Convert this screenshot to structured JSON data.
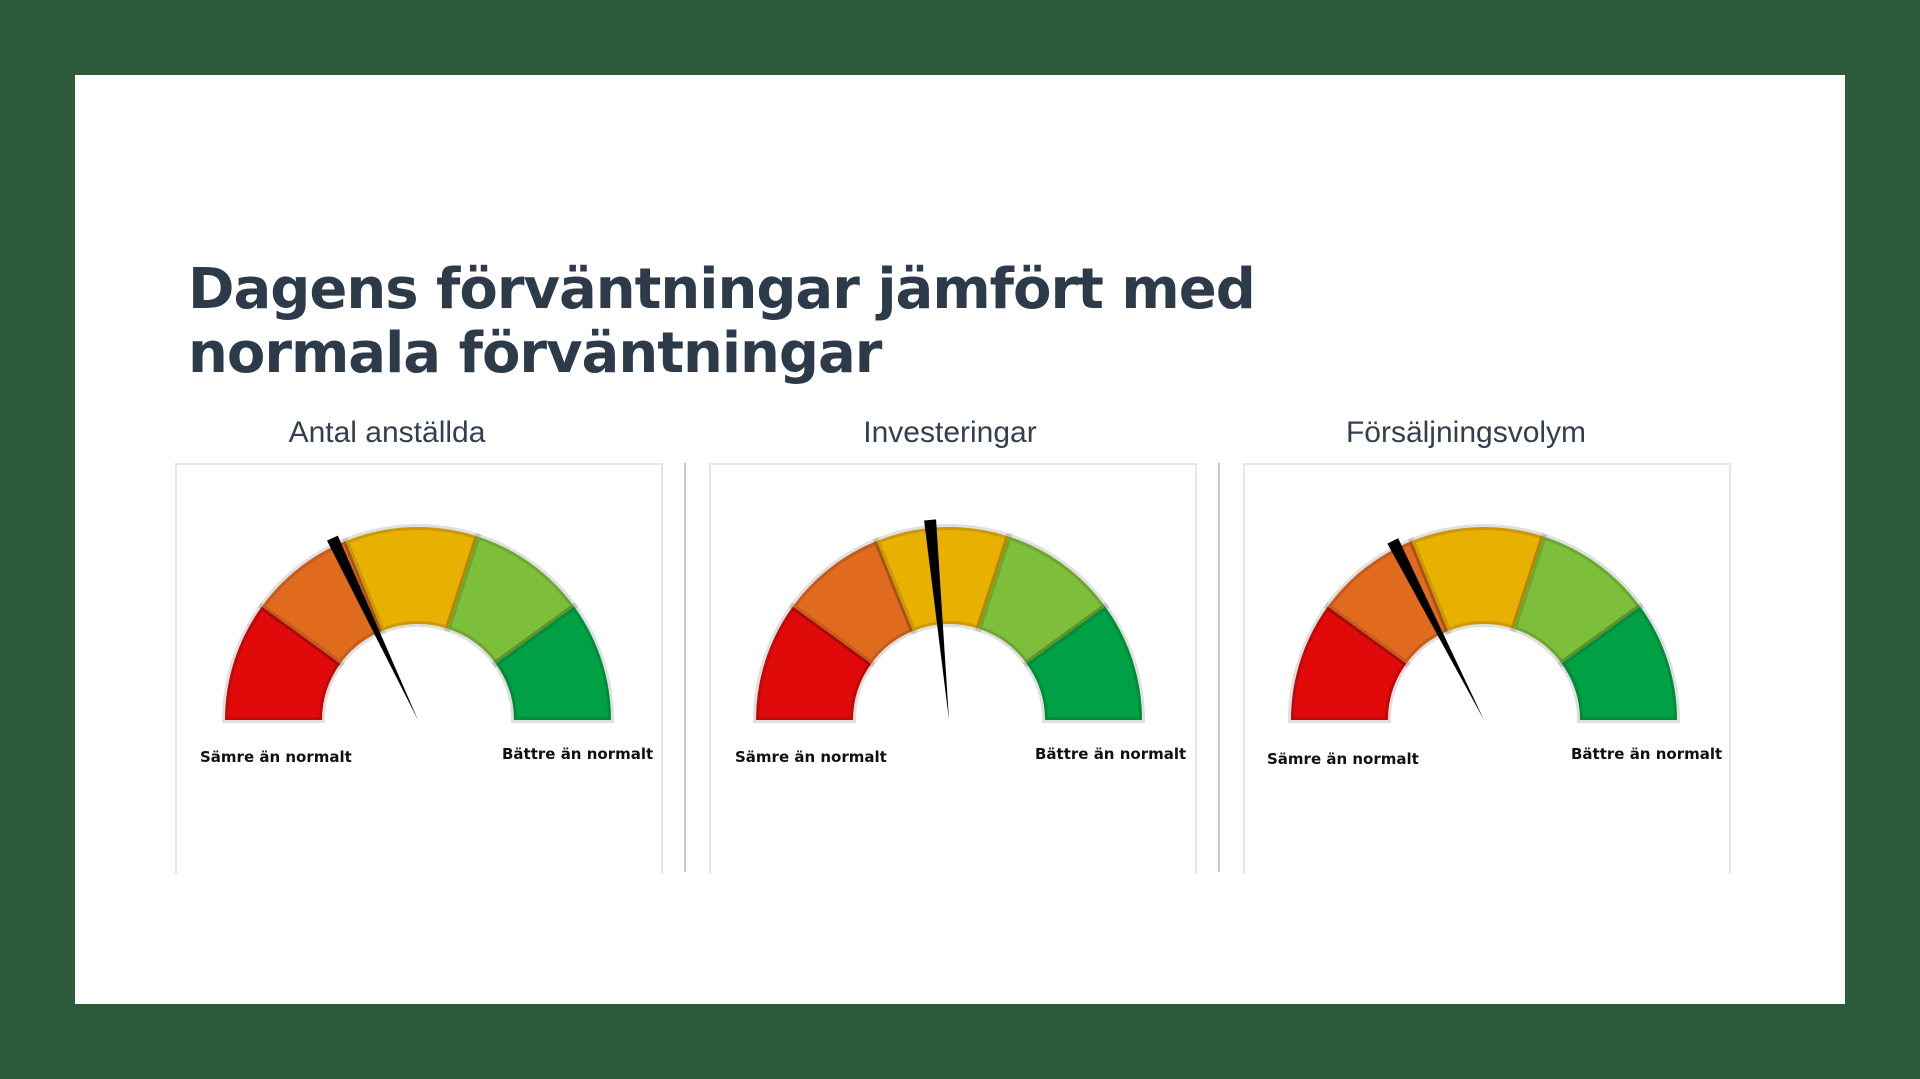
{
  "title": "Dagens förväntningar jämfört med normala förväntningar",
  "chart_data": [
    {
      "type": "gauge",
      "title": "Antal anställda",
      "min_label": "Sämre än normalt",
      "max_label": "Bättre än normalt",
      "value": 0.36,
      "range": [
        0,
        1
      ]
    },
    {
      "type": "gauge",
      "title": "Investeringar",
      "min_label": "Sämre än normalt",
      "max_label": "Bättre än normalt",
      "value": 0.47,
      "range": [
        0,
        1
      ]
    },
    {
      "type": "gauge",
      "title": "Försäljningsvolym",
      "min_label": "Sämre än normalt",
      "max_label": "Bättre än normalt",
      "value": 0.35,
      "range": [
        0,
        1
      ]
    }
  ],
  "colors": {
    "segments": [
      "#e00a0a",
      "#e06a1e",
      "#e8b000",
      "#7dbf3a",
      "#00a044"
    ],
    "needle": "#000000",
    "frame": "#2e5a3c"
  }
}
